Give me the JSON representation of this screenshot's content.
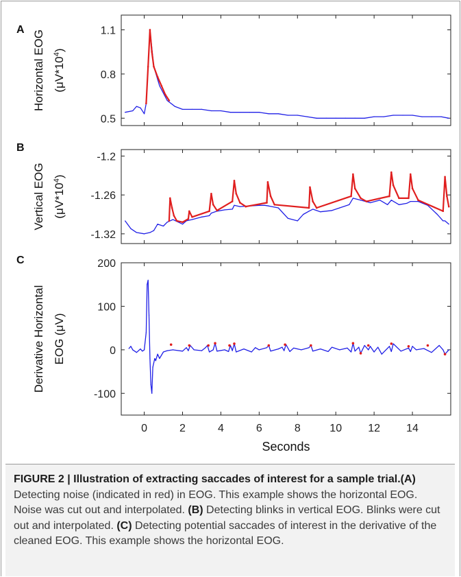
{
  "panels": [
    {
      "letter": "A",
      "ylabel_line1": "Horizontal EOG",
      "ylabel_line2": "(μV*10",
      "ylabel_sup": "4",
      "ylabel_close": ")",
      "yticks": [
        "1.1",
        "0.8",
        "0.5"
      ],
      "ytick_values": [
        1.1,
        0.8,
        0.5
      ],
      "ylim": [
        0.45,
        1.2
      ]
    },
    {
      "letter": "B",
      "ylabel_line1": "Vertical EOG",
      "ylabel_line2": "(μV*10",
      "ylabel_sup": "4",
      "ylabel_close": ")",
      "yticks": [
        "-1.2",
        "-1.26",
        "-1.32"
      ],
      "ytick_values": [
        -1.2,
        -1.26,
        -1.32
      ],
      "ylim": [
        -1.335,
        -1.19
      ]
    },
    {
      "letter": "C",
      "ylabel_line1": "Derivative Horizontal",
      "ylabel_line2": "EOG (μV)",
      "ylabel_sup": "",
      "ylabel_close": "",
      "yticks": [
        "200",
        "100",
        "0",
        "-100"
      ],
      "ytick_values": [
        200,
        100,
        0,
        -100
      ],
      "ylim": [
        -150,
        200
      ]
    }
  ],
  "x_axis": {
    "ticks": [
      "0",
      "2",
      "4",
      "6",
      "8",
      "10",
      "12",
      "14"
    ],
    "tick_values": [
      0,
      2,
      4,
      6,
      8,
      10,
      12,
      14
    ],
    "xlim": [
      -1.2,
      16
    ],
    "label": "Seconds"
  },
  "colors": {
    "signal": "#1f1fe6",
    "noise": "#e01e1e"
  },
  "chart_data": [
    {
      "type": "line",
      "panel": "A",
      "xlim": [
        -1.2,
        16
      ],
      "ylim": [
        0.45,
        1.2
      ],
      "series": [
        {
          "color": "blue",
          "x": [
            -1.0,
            -0.6,
            -0.4,
            -0.2,
            0.0,
            0.1,
            0.2,
            0.3,
            0.5,
            0.8,
            1.2,
            1.6,
            2.0,
            2.5,
            3.0,
            3.5,
            4.0,
            4.5,
            5.0,
            5.5,
            6.0,
            6.5,
            7.0,
            7.5,
            8.0,
            8.5,
            9.0,
            9.5,
            10.0,
            10.5,
            11.0,
            11.5,
            12.0,
            12.5,
            13.0,
            13.5,
            14.0,
            14.5,
            15.0,
            15.5,
            15.9
          ],
          "y": [
            0.54,
            0.55,
            0.58,
            0.57,
            0.53,
            0.6,
            0.85,
            1.1,
            0.85,
            0.72,
            0.62,
            0.58,
            0.56,
            0.56,
            0.56,
            0.55,
            0.55,
            0.54,
            0.54,
            0.54,
            0.54,
            0.53,
            0.53,
            0.52,
            0.52,
            0.51,
            0.5,
            0.5,
            0.5,
            0.5,
            0.5,
            0.5,
            0.51,
            0.51,
            0.52,
            0.52,
            0.52,
            0.51,
            0.51,
            0.51,
            0.5
          ]
        },
        {
          "color": "red",
          "x": [
            0.1,
            0.2,
            0.3,
            0.4,
            0.5,
            0.7,
            0.9,
            1.1,
            1.3
          ],
          "y": [
            0.6,
            0.85,
            1.1,
            0.95,
            0.85,
            0.78,
            0.72,
            0.66,
            0.62
          ]
        }
      ]
    },
    {
      "type": "line",
      "panel": "B",
      "xlim": [
        -1.2,
        16
      ],
      "ylim": [
        -1.335,
        -1.19
      ],
      "series": [
        {
          "color": "blue",
          "x": [
            -1.0,
            -0.7,
            -0.4,
            0.0,
            0.3,
            0.5,
            0.7,
            1.0,
            1.2,
            1.5,
            2.0,
            2.2,
            2.5,
            3.0,
            3.4,
            3.5,
            3.8,
            4.2,
            4.6,
            4.7,
            5.0,
            5.5,
            6.0,
            6.3,
            6.5,
            7.0,
            7.5,
            8.0,
            8.3,
            8.6,
            8.8,
            9.2,
            9.8,
            10.2,
            10.7,
            10.9,
            11.3,
            11.8,
            12.3,
            12.7,
            12.9,
            13.3,
            13.7,
            13.9,
            14.3,
            14.8,
            15.3,
            15.6,
            15.7,
            15.9
          ],
          "y": [
            -1.3,
            -1.312,
            -1.318,
            -1.32,
            -1.318,
            -1.315,
            -1.305,
            -1.308,
            -1.302,
            -1.298,
            -1.305,
            -1.3,
            -1.298,
            -1.294,
            -1.292,
            -1.288,
            -1.285,
            -1.283,
            -1.282,
            -1.276,
            -1.278,
            -1.277,
            -1.276,
            -1.276,
            -1.277,
            -1.28,
            -1.296,
            -1.3,
            -1.29,
            -1.285,
            -1.282,
            -1.286,
            -1.284,
            -1.28,
            -1.275,
            -1.265,
            -1.268,
            -1.272,
            -1.268,
            -1.275,
            -1.268,
            -1.275,
            -1.273,
            -1.27,
            -1.27,
            -1.276,
            -1.29,
            -1.3,
            -1.3,
            -1.305
          ]
        },
        {
          "color": "red",
          "x": [
            1.3,
            1.35,
            1.45,
            1.55,
            1.7,
            2.0,
            2.3,
            2.35,
            2.5,
            3.4,
            3.5,
            3.6,
            3.8,
            4.6,
            4.7,
            4.8,
            5.0,
            5.3,
            6.4,
            6.45,
            6.6,
            6.8,
            8.6,
            8.65,
            8.8,
            9.0,
            10.8,
            10.9,
            11.0,
            11.3,
            11.6,
            12.8,
            12.9,
            13.0,
            13.3,
            13.8,
            13.9,
            14.0,
            14.3,
            15.6,
            15.7,
            15.8,
            15.9
          ],
          "y": [
            -1.3,
            -1.265,
            -1.28,
            -1.292,
            -1.3,
            -1.302,
            -1.297,
            -1.285,
            -1.294,
            -1.285,
            -1.258,
            -1.275,
            -1.284,
            -1.27,
            -1.238,
            -1.258,
            -1.272,
            -1.278,
            -1.272,
            -1.24,
            -1.262,
            -1.275,
            -1.28,
            -1.248,
            -1.27,
            -1.28,
            -1.262,
            -1.228,
            -1.25,
            -1.265,
            -1.27,
            -1.262,
            -1.225,
            -1.245,
            -1.265,
            -1.265,
            -1.228,
            -1.25,
            -1.268,
            -1.285,
            -1.232,
            -1.262,
            -1.278
          ]
        }
      ]
    },
    {
      "type": "line",
      "panel": "C",
      "xlim": [
        -1.2,
        16
      ],
      "ylim": [
        -150,
        200
      ],
      "series": [
        {
          "color": "blue",
          "x": [
            -0.8,
            -0.7,
            -0.6,
            -0.4,
            -0.2,
            -0.1,
            0.0,
            0.1,
            0.15,
            0.2,
            0.25,
            0.3,
            0.35,
            0.4,
            0.45,
            0.5,
            0.55,
            0.6,
            0.7,
            0.8,
            1.0,
            1.2,
            1.5,
            2.0,
            2.2,
            2.3,
            2.4,
            2.6,
            3.0,
            3.2,
            3.3,
            3.4,
            3.6,
            3.7,
            3.8,
            4.2,
            4.4,
            4.5,
            4.6,
            4.7,
            4.8,
            5.2,
            5.6,
            5.8,
            6.0,
            6.4,
            6.5,
            6.6,
            7.0,
            7.2,
            7.3,
            7.4,
            7.6,
            7.8,
            8.2,
            8.6,
            8.7,
            8.8,
            9.2,
            9.6,
            9.8,
            10.2,
            10.6,
            10.8,
            10.9,
            11.0,
            11.2,
            11.3,
            11.5,
            11.7,
            11.8,
            12.0,
            12.2,
            12.4,
            12.8,
            12.9,
            13.0,
            13.4,
            13.8,
            13.9,
            14.0,
            14.2,
            14.6,
            15.0,
            15.4,
            15.6,
            15.7,
            15.9
          ],
          "y": [
            3,
            8,
            0,
            -6,
            2,
            -3,
            0,
            40,
            150,
            160,
            80,
            -20,
            -80,
            -100,
            -40,
            -30,
            -20,
            -25,
            -10,
            -20,
            -5,
            -2,
            0,
            -3,
            5,
            -2,
            10,
            0,
            -2,
            5,
            10,
            -5,
            0,
            15,
            -3,
            0,
            -4,
            10,
            -2,
            14,
            -5,
            2,
            -5,
            5,
            0,
            5,
            10,
            -3,
            2,
            6,
            -2,
            12,
            -4,
            4,
            0,
            5,
            10,
            -3,
            2,
            -4,
            6,
            0,
            4,
            -5,
            15,
            -3,
            6,
            -8,
            10,
            0,
            8,
            -5,
            6,
            -10,
            8,
            -4,
            14,
            -3,
            4,
            -4,
            8,
            0,
            3,
            -6,
            10,
            0,
            -10,
            0
          ]
        },
        {
          "color": "red",
          "x": [
            1.4,
            2.35,
            3.35,
            3.7,
            4.45,
            4.7,
            6.5,
            7.35,
            8.7,
            10.9,
            11.3,
            11.7,
            12.9,
            13.8,
            14.8,
            15.7
          ],
          "y": [
            12,
            10,
            10,
            15,
            10,
            14,
            10,
            12,
            10,
            15,
            -8,
            10,
            14,
            8,
            10,
            -10
          ]
        }
      ]
    }
  ],
  "caption": {
    "fig_label": "FIGURE 2 | ",
    "title": "Illustration of extracting saccades of interest for a sample trial.",
    "a_label": "(A)",
    "a_text": " Detecting noise (indicated in red) in EOG. This example shows the horizontal EOG. Noise was cut out and interpolated. ",
    "b_label": "(B)",
    "b_text": " Detecting blinks in vertical EOG. Blinks were cut out and interpolated. ",
    "c_label": "(C)",
    "c_text": " Detecting potential saccades of interest in the derivative of the cleaned EOG. This example shows the horizontal EOG."
  }
}
